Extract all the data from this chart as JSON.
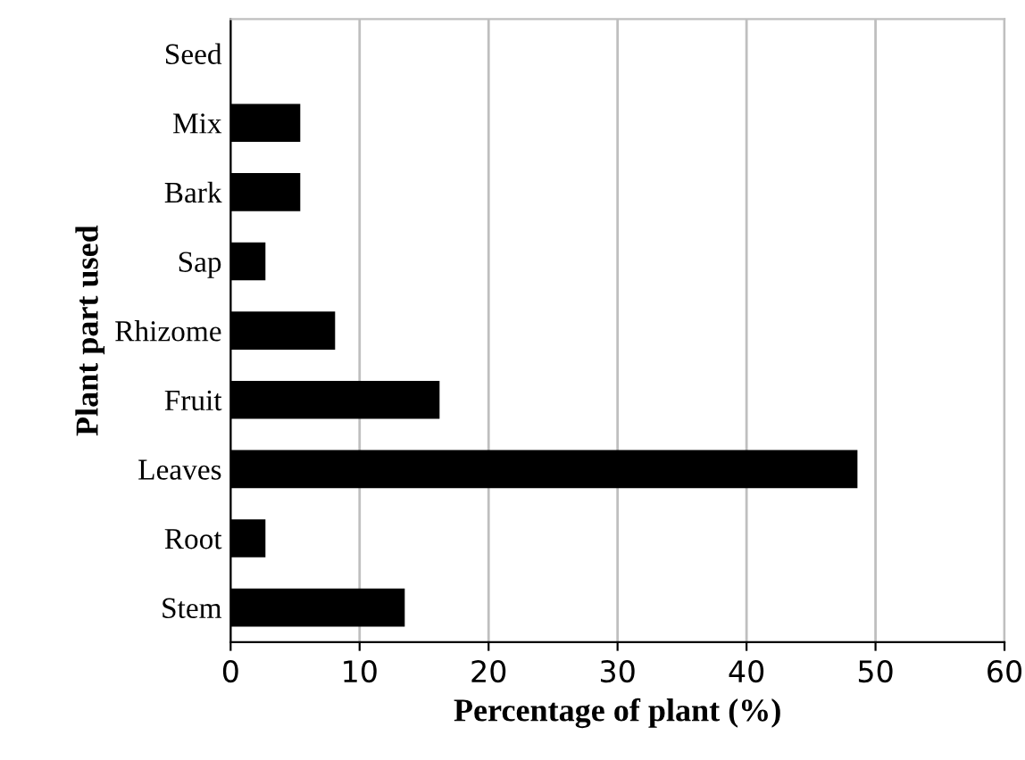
{
  "chart_data": {
    "type": "bar",
    "orientation": "horizontal",
    "xlabel": "Percentage of plant (%)",
    "ylabel": "Plant part used",
    "categories": [
      "Seed",
      "Mix",
      "Bark",
      "Sap",
      "Rhizome",
      "Fruit",
      "Leaves",
      "Root",
      "Stem"
    ],
    "values": [
      0,
      5.4,
      5.4,
      2.7,
      8.1,
      16.2,
      48.6,
      2.7,
      13.5
    ],
    "color": "#000000",
    "xlim": [
      0,
      60
    ],
    "xticks": [
      0,
      10,
      20,
      30,
      40,
      50,
      60
    ],
    "grid": "x"
  }
}
